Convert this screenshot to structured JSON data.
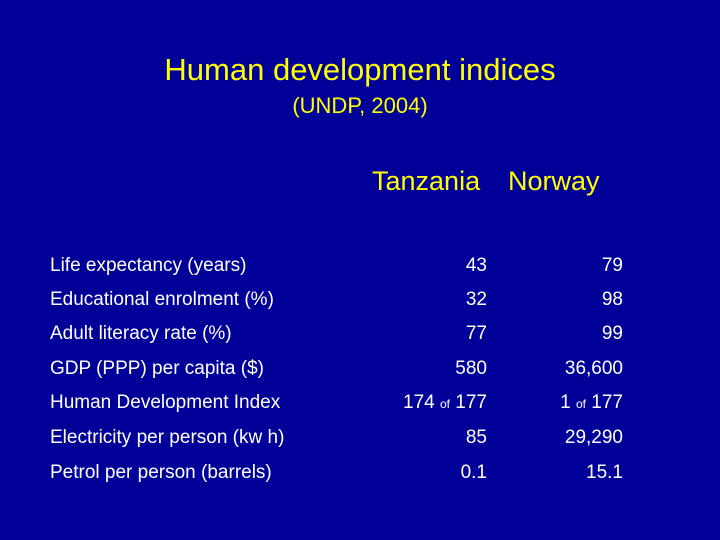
{
  "slide": {
    "title": "Human development indices",
    "subtitle": "(UNDP, 2004)"
  },
  "table": {
    "columns": [
      "Tanzania",
      "Norway"
    ],
    "rows": [
      {
        "label": "Life expectancy  (years)",
        "tanzania": "43",
        "norway": "79"
      },
      {
        "label": "Educational enrolment  (%)",
        "tanzania": "32",
        "norway": "98"
      },
      {
        "label": "Adult literacy rate (%)",
        "tanzania": "77",
        "norway": "99"
      },
      {
        "label": "GDP (PPP) per capita  ($)",
        "tanzania": "580",
        "norway": "36,600"
      },
      {
        "label": "Human Development Index",
        "tanzania": {
          "rank": "174",
          "of": "of",
          "total": "177"
        },
        "norway": {
          "rank": "1",
          "of": "of",
          "total": "177"
        }
      },
      {
        "label": "Electricity per person (kw h)",
        "tanzania": "85",
        "norway": "29,290"
      },
      {
        "label": "Petrol per person (barrels)",
        "tanzania": "0.1",
        "norway": "15.1"
      }
    ]
  },
  "colors": {
    "background": "#000099",
    "heading": "#ffff00",
    "text": "#ffffff"
  }
}
